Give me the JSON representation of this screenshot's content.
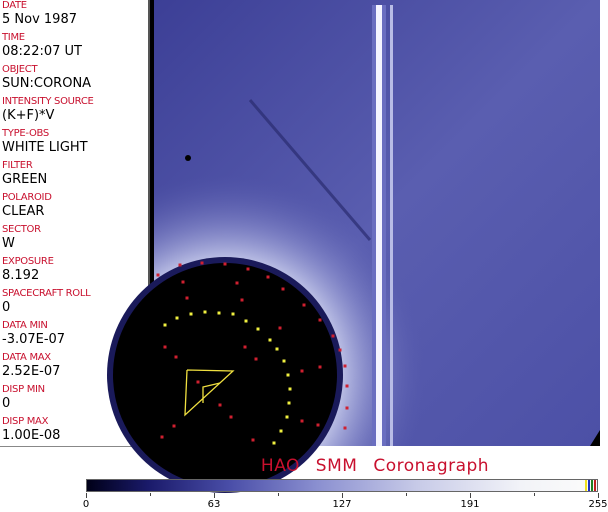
{
  "fields": [
    {
      "label": "DATE",
      "value": "5 Nov 1987"
    },
    {
      "label": "TIME",
      "value": "08:22:07 UT"
    },
    {
      "label": "OBJECT",
      "value": "SUN:CORONA"
    },
    {
      "label": "INTENSITY SOURCE",
      "value": "(K+F)*V"
    },
    {
      "label": "TYPE-OBS",
      "value": "WHITE LIGHT"
    },
    {
      "label": "FILTER",
      "value": "GREEN"
    },
    {
      "label": "POLAROID",
      "value": "CLEAR"
    },
    {
      "label": "SECTOR",
      "value": "W"
    },
    {
      "label": "EXPOSURE",
      "value": "8.192"
    },
    {
      "label": "SPACECRAFT ROLL",
      "value": "0"
    },
    {
      "label": "DATA MIN",
      "value": "-3.07E-07"
    },
    {
      "label": "DATA MAX",
      "value": "2.52E-07"
    },
    {
      "label": "DISP MIN",
      "value": "0"
    },
    {
      "label": "DISP MAX",
      "value": "1.00E-08"
    }
  ],
  "title": "HAO  SMM Coronagraph",
  "colorbar": {
    "ticks": [
      "0",
      "63",
      "127",
      "191",
      "255"
    ],
    "range": [
      0,
      255
    ],
    "end_colors": [
      "#f0e020",
      "#2030c0",
      "#208020",
      "#c02020"
    ]
  },
  "colors": {
    "label": "#c8102e",
    "background": "#4a4ea8",
    "occulter": "#000000"
  }
}
